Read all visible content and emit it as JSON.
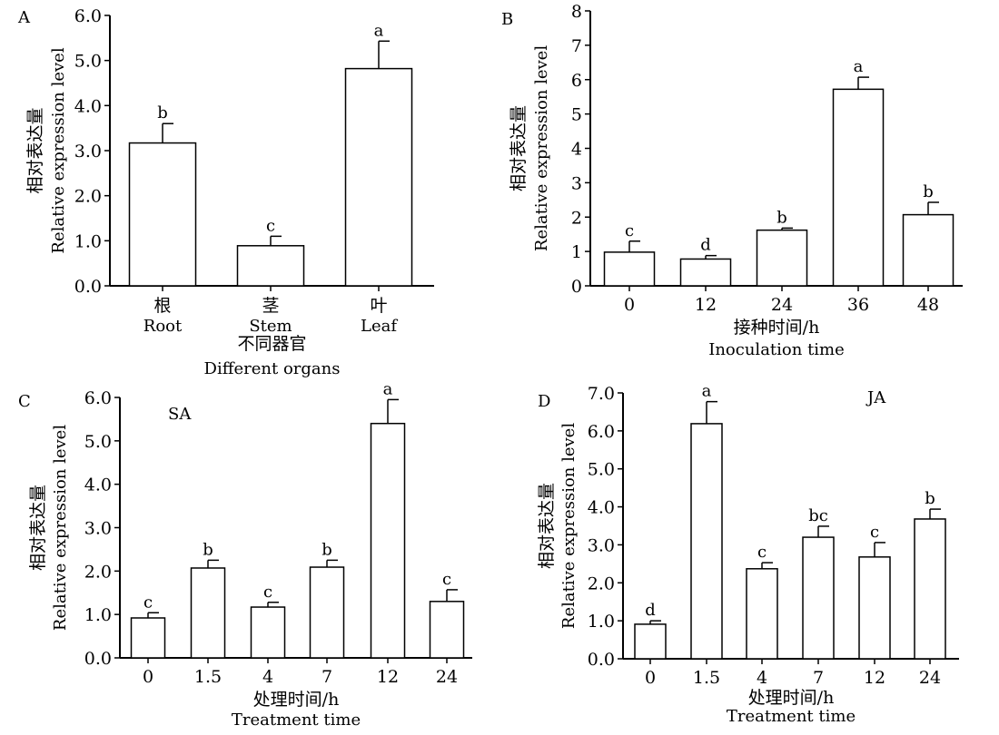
{
  "chart_data": [
    {
      "type": "bar",
      "panel_label": "A",
      "title": "",
      "ylabel_cn": "相对表达量",
      "ylabel": "Relative expression level",
      "xlabel_cn": "不同器官",
      "xlabel": "Different organs",
      "categories_cn": [
        "根",
        "茎",
        "叶"
      ],
      "categories": [
        "Root",
        "Stem",
        "Leaf"
      ],
      "values": [
        3.17,
        0.89,
        4.82
      ],
      "error_upper": [
        3.6,
        1.1,
        5.43
      ],
      "significance": [
        "b",
        "c",
        "a"
      ],
      "ylim": [
        0,
        6
      ],
      "yticks": [
        "0.0",
        "1.0",
        "2.0",
        "3.0",
        "4.0",
        "5.0",
        "6.0"
      ]
    },
    {
      "type": "bar",
      "panel_label": "B",
      "title": "",
      "ylabel_cn": "相对表达量",
      "ylabel": "Relative expression level",
      "xlabel_cn": "接种时间/h",
      "xlabel": "Inoculation time",
      "categories": [
        "0",
        "12",
        "24",
        "36",
        "48"
      ],
      "values": [
        0.98,
        0.78,
        1.62,
        5.72,
        2.07
      ],
      "error_upper": [
        1.3,
        0.88,
        1.68,
        6.07,
        2.43
      ],
      "significance": [
        "c",
        "d",
        "b",
        "a",
        "b"
      ],
      "ylim": [
        0,
        8
      ],
      "yticks": [
        "0",
        "1",
        "2",
        "3",
        "4",
        "5",
        "6",
        "7",
        "8"
      ]
    },
    {
      "type": "bar",
      "panel_label": "C",
      "title": "SA",
      "ylabel_cn": "相对表达量",
      "ylabel": "Relative expression level",
      "xlabel_cn": "处理时间/h",
      "xlabel": "Treatment time",
      "categories": [
        "0",
        "1.5",
        "4",
        "7",
        "12",
        "24"
      ],
      "values": [
        0.92,
        2.07,
        1.17,
        2.09,
        5.4,
        1.3
      ],
      "error_upper": [
        1.04,
        2.25,
        1.28,
        2.25,
        5.95,
        1.57
      ],
      "significance": [
        "c",
        "b",
        "c",
        "b",
        "a",
        "c"
      ],
      "ylim": [
        0,
        6
      ],
      "yticks": [
        "0.0",
        "1.0",
        "2.0",
        "3.0",
        "4.0",
        "5.0",
        "6.0"
      ]
    },
    {
      "type": "bar",
      "panel_label": "D",
      "title": "JA",
      "ylabel_cn": "相对表达量",
      "ylabel": "Relative expression level",
      "xlabel_cn": "处理时间/h",
      "xlabel": "Treatment time",
      "categories": [
        "0",
        "1.5",
        "4",
        "7",
        "12",
        "24"
      ],
      "values": [
        0.91,
        6.19,
        2.37,
        3.2,
        2.68,
        3.68
      ],
      "error_upper": [
        1.0,
        6.77,
        2.53,
        3.49,
        3.06,
        3.94
      ],
      "significance": [
        "d",
        "a",
        "c",
        "bc",
        "c",
        "b"
      ],
      "ylim": [
        0,
        7
      ],
      "yticks": [
        "0.0",
        "1.0",
        "2.0",
        "3.0",
        "4.0",
        "5.0",
        "6.0",
        "7.0"
      ]
    }
  ]
}
